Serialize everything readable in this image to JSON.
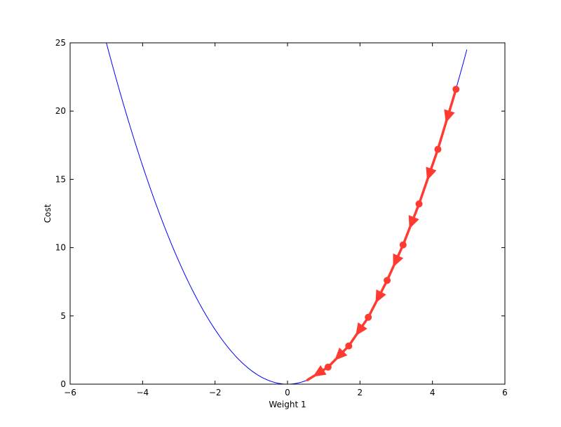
{
  "chart_data": {
    "type": "line",
    "title": "",
    "xlabel": "Weight 1",
    "ylabel": "Cost",
    "xlim": [
      -6,
      6
    ],
    "ylim": [
      0,
      25
    ],
    "xticks": [
      -6,
      -4,
      -2,
      0,
      2,
      4,
      6
    ],
    "yticks": [
      0,
      5,
      10,
      15,
      20,
      25
    ],
    "xtick_labels": [
      "−6",
      "−4",
      "−2",
      "0",
      "2",
      "4",
      "6"
    ],
    "ytick_labels": [
      "0",
      "5",
      "10",
      "15",
      "20",
      "25"
    ],
    "grid": false,
    "legend": "none",
    "curve": {
      "function": "y = x^2",
      "x_range": [
        -5,
        4.95
      ],
      "color": "#0000ff"
    },
    "descent_path": {
      "color": "#ff3a30",
      "points": [
        {
          "x": 4.65,
          "y": 21.6
        },
        {
          "x": 4.15,
          "y": 17.2
        },
        {
          "x": 3.63,
          "y": 13.2
        },
        {
          "x": 3.19,
          "y": 10.2
        },
        {
          "x": 2.75,
          "y": 7.6
        },
        {
          "x": 2.23,
          "y": 4.9
        },
        {
          "x": 1.69,
          "y": 2.8
        },
        {
          "x": 1.12,
          "y": 1.25
        },
        {
          "x": 0.55,
          "y": 0.3
        }
      ]
    }
  }
}
